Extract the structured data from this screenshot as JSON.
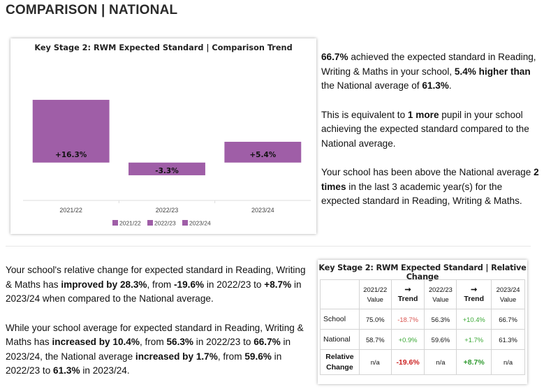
{
  "page_title": "COMPARISON | NATIONAL",
  "chart_data": {
    "type": "bar",
    "title": "Key Stage 2: RWM Expected Standard | Comparison Trend",
    "categories": [
      "2021/22",
      "2022/23",
      "2023/24"
    ],
    "values": [
      16.3,
      -3.3,
      5.4
    ],
    "data_labels": [
      "+16.3%",
      "-3.3%",
      "+5.4%"
    ],
    "ylim": [
      -20,
      25
    ],
    "grid": true,
    "bar_color": "#9f5ea7",
    "legend_position": "bottom",
    "legend": [
      "2021/22",
      "2022/23",
      "2023/24"
    ]
  },
  "summary": {
    "p1": {
      "a": "66.7%",
      "b": " achieved the expected standard in Reading, Writing & Maths in your school, ",
      "c": "5.4% higher than",
      "d": " the National average of ",
      "e": "61.3%",
      "f": "."
    },
    "p2": {
      "a": "This is equivalent to ",
      "b": "1 more",
      "c": " pupil in your school achieving the expected standard compared to the National average."
    },
    "p3": {
      "a": "Your school has been above the National average ",
      "b": "2 times",
      "c": " in the last 3 academic year(s) for the expected standard in Reading, Writing & Maths."
    }
  },
  "change": {
    "p1": {
      "a": "Your school's relative change for expected standard in Reading, Writing & Maths has ",
      "b": "improved by 28.3%",
      "c": ", from ",
      "d": "-19.6%",
      "e": " in 2022/23 to ",
      "f": "+8.7%",
      "g": " in 2023/24 when compared to the National average."
    },
    "p2": {
      "a": "While your school average for expected standard in Reading, Writing & Maths has ",
      "b": "increased by 10.4%",
      "c": ", from ",
      "d": "56.3%",
      "e": " in 2022/23 to ",
      "f": "66.7%",
      "g": " in 2023/24, the National average ",
      "h": "increased by 1.7%",
      "i": ", from ",
      "j": "59.6%",
      "k": " in 2022/23 to ",
      "l": "61.3%",
      "m": " in 2023/24."
    }
  },
  "table": {
    "title": "Key Stage 2: RWM Expected Standard | Relative Change",
    "headers": {
      "y1": "2021/22",
      "v1": "Value",
      "arrow": "➞",
      "trend": "Trend",
      "y2": "2022/23",
      "v2": "Value",
      "y3": "2023/24",
      "v3": "Value"
    },
    "rows": {
      "school": {
        "label": "School",
        "c1": "75.0%",
        "t1": "-18.7%",
        "c2": "56.3%",
        "t2": "+10.4%",
        "c3": "66.7%"
      },
      "national": {
        "label": "National",
        "c1": "58.7%",
        "t1": "+0.9%",
        "c2": "59.6%",
        "t2": "+1.7%",
        "c3": "61.3%"
      },
      "relative": {
        "label1": "Relative",
        "label2": "Change",
        "c1": "n/a",
        "t1": "-19.6%",
        "c2": "n/a",
        "t2": "+8.7%",
        "c3": "n/a"
      }
    }
  }
}
